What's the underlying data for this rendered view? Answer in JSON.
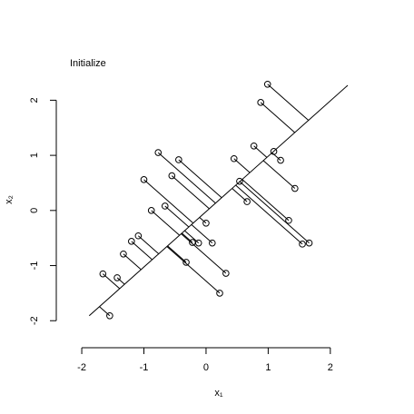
{
  "chart_data": {
    "type": "scatter",
    "title": "Initialize",
    "x_label": "x₁",
    "y_label": "x₂",
    "x": [
      0.99,
      0.88,
      -0.77,
      -0.44,
      0.77,
      1.09,
      1.2,
      0.45,
      -0.55,
      -1.0,
      1.43,
      0.54,
      0.66,
      -0.66,
      -0.88,
      0.0,
      1.33,
      -1.09,
      -1.2,
      -0.22,
      -0.12,
      0.1,
      1.55,
      1.66,
      -1.33,
      -0.32,
      0.32,
      -1.43,
      -1.66,
      0.22,
      -1.55
    ],
    "y": [
      2.29,
      1.96,
      1.05,
      0.92,
      1.17,
      1.07,
      0.91,
      0.94,
      0.63,
      0.56,
      0.4,
      0.53,
      0.16,
      0.08,
      0.0,
      -0.23,
      -0.18,
      -0.46,
      -0.56,
      -0.58,
      -0.59,
      -0.59,
      -0.61,
      -0.59,
      -0.79,
      -0.94,
      -1.14,
      -1.22,
      -1.15,
      -1.5,
      -1.91
    ],
    "line": {
      "x": [
        -1.88,
        2.28
      ],
      "y": [
        -1.91,
        2.27
      ]
    },
    "xlim": [
      -2.41,
      2.28
    ],
    "ylim": [
      -2.49,
      2.27
    ],
    "xticks": [
      -2,
      -1,
      0,
      1,
      2
    ],
    "yticks": [
      -2,
      -1,
      0,
      1,
      2
    ],
    "grid": false
  }
}
